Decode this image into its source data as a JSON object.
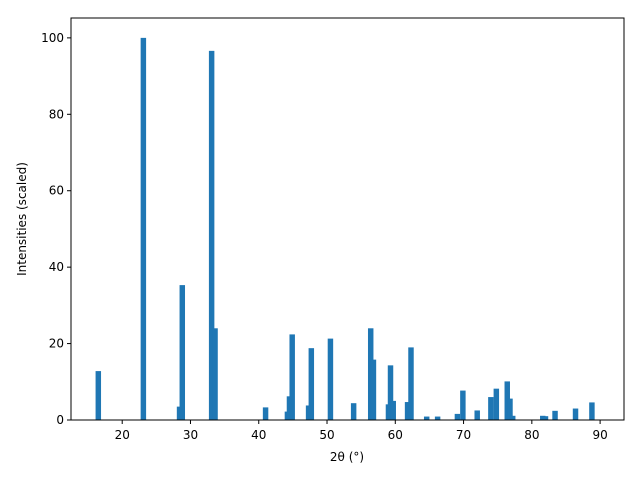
{
  "chart_data": {
    "type": "bar",
    "xlabel": "2θ (°)",
    "ylabel": "Intensities (scaled)",
    "color": "#1f77b4",
    "x": [
      16.5,
      23.1,
      28.4,
      28.8,
      33.1,
      33.6,
      41.0,
      44.2,
      44.5,
      44.9,
      47.3,
      47.7,
      50.5,
      53.9,
      56.4,
      56.8,
      59.0,
      59.3,
      59.7,
      61.8,
      62.3,
      64.6,
      66.2,
      69.1,
      69.9,
      72.0,
      74.0,
      74.8,
      76.4,
      76.8,
      77.2,
      81.6,
      82.0,
      83.4,
      86.4,
      88.8
    ],
    "values": [
      12.8,
      100,
      3.5,
      35.3,
      96.6,
      24,
      3.3,
      2.2,
      6.2,
      22.4,
      3.8,
      18.8,
      21.3,
      4.4,
      24,
      15.8,
      4.1,
      14.3,
      5.0,
      4.7,
      19,
      0.9,
      0.9,
      1.6,
      7.7,
      2.5,
      6.0,
      8.2,
      10.1,
      5.6,
      1.1,
      1.1,
      1.0,
      2.4,
      3.0,
      4.6
    ],
    "xlim": [
      12.5,
      93.5
    ],
    "ylim": [
      0,
      105.2
    ],
    "xticks": [
      20,
      30,
      40,
      50,
      60,
      70,
      80,
      90
    ],
    "yticks": [
      0,
      20,
      40,
      60,
      80,
      100
    ]
  }
}
